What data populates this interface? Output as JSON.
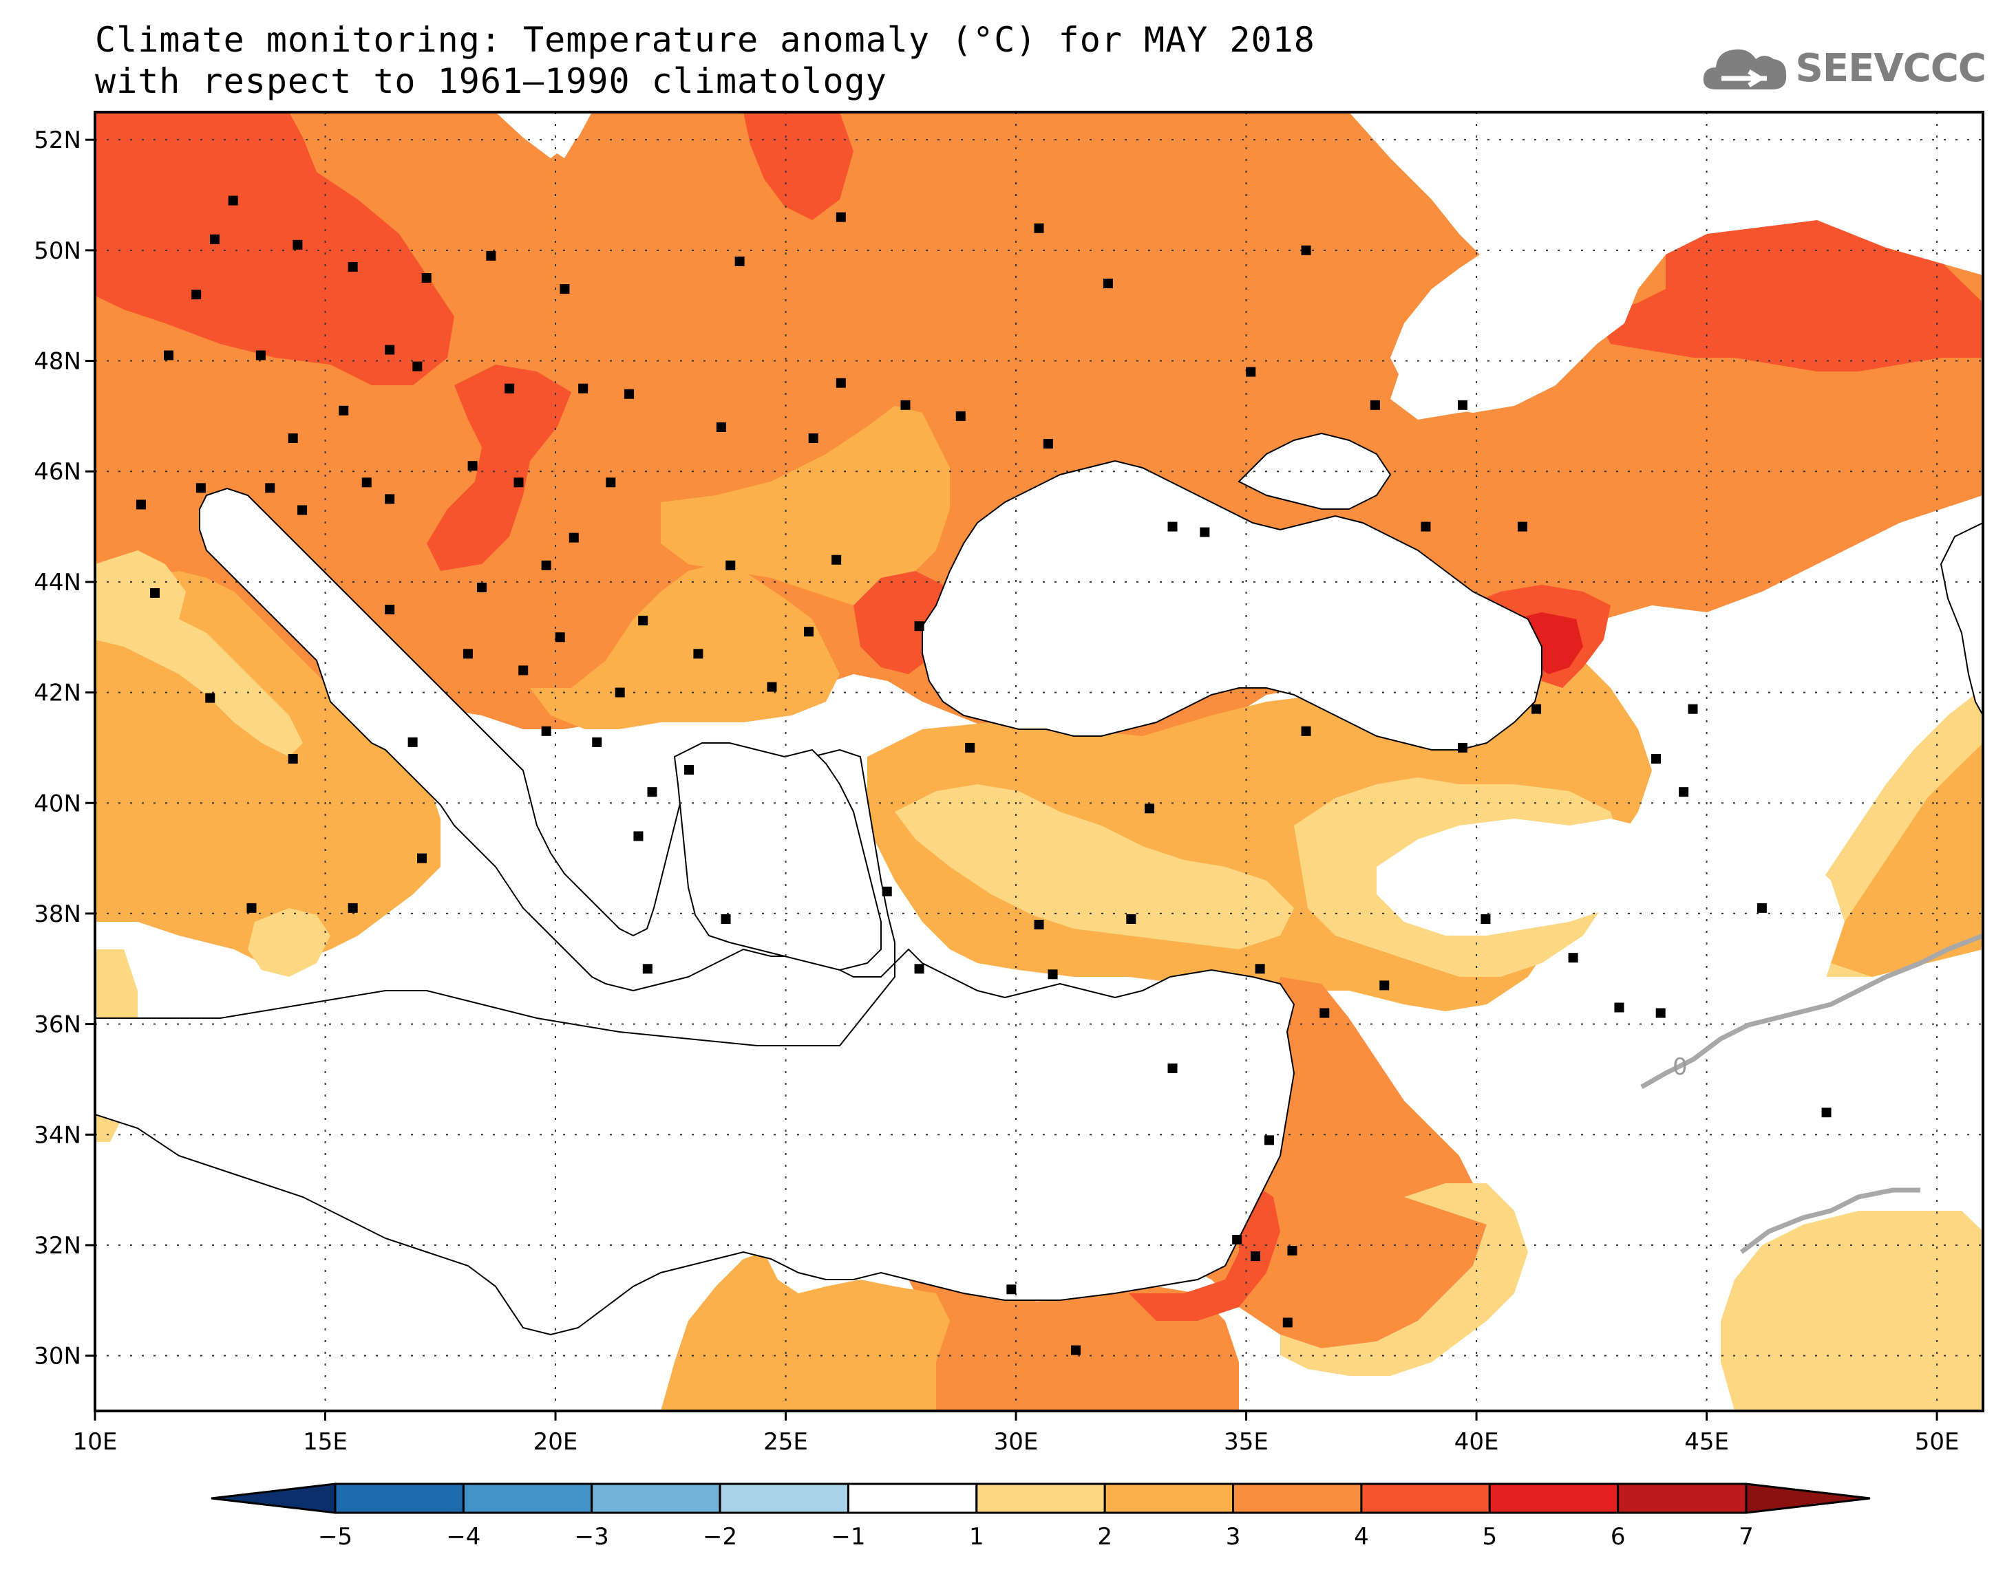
{
  "title": {
    "line1": "Climate monitoring: Temperature anomaly (°C) for MAY 2018",
    "line2": "with respect to 1961–1990 climatology"
  },
  "logo": {
    "text": "SEEVCCC",
    "icon": "cloud-icon",
    "color": "#7f7f7f"
  },
  "map": {
    "lon_range": [
      10,
      51
    ],
    "lat_range": [
      29,
      52.5
    ],
    "lon_ticks": [
      {
        "value": 10,
        "label": "10E"
      },
      {
        "value": 15,
        "label": "15E"
      },
      {
        "value": 20,
        "label": "20E"
      },
      {
        "value": 25,
        "label": "25E"
      },
      {
        "value": 30,
        "label": "30E"
      },
      {
        "value": 35,
        "label": "35E"
      },
      {
        "value": 40,
        "label": "40E"
      },
      {
        "value": 45,
        "label": "45E"
      },
      {
        "value": 50,
        "label": "50E"
      }
    ],
    "lat_ticks": [
      {
        "value": 52,
        "label": "52N"
      },
      {
        "value": 50,
        "label": "50N"
      },
      {
        "value": 48,
        "label": "48N"
      },
      {
        "value": 46,
        "label": "46N"
      },
      {
        "value": 44,
        "label": "44N"
      },
      {
        "value": 42,
        "label": "42N"
      },
      {
        "value": 40,
        "label": "40N"
      },
      {
        "value": 38,
        "label": "38N"
      },
      {
        "value": 36,
        "label": "36N"
      },
      {
        "value": 34,
        "label": "34N"
      },
      {
        "value": 32,
        "label": "32N"
      },
      {
        "value": 30,
        "label": "30N"
      }
    ],
    "gridlines": true,
    "contour_label": "0"
  },
  "colorbar": {
    "ticks": [
      "−5",
      "−4",
      "−3",
      "−2",
      "−1",
      "1",
      "2",
      "3",
      "4",
      "5",
      "6",
      "7"
    ],
    "colors": [
      "#0a2f6b",
      "#1f6bb0",
      "#4393c9",
      "#73b2d9",
      "#a9d3e9",
      "#ffffff",
      "#fdd782",
      "#fcb04c",
      "#f98e3e",
      "#f6542c",
      "#e2201e",
      "#bd1b1b",
      "#8b1111"
    ]
  },
  "fill_colors": {
    "c12": "#fdd782",
    "c23": "#fcb04c",
    "c34": "#f98e3e",
    "c45": "#f6542c",
    "c56": "#e2201e",
    "sea": "#ffffff"
  }
}
